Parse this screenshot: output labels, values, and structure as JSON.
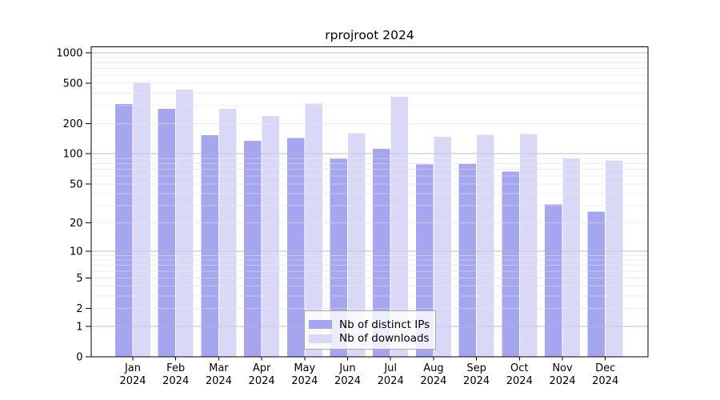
{
  "page": {
    "background": "#ffffff"
  },
  "chart_data": {
    "type": "bar",
    "title": "rprojroot 2024",
    "categories": [
      "Jan 2024",
      "Feb 2024",
      "Mar 2024",
      "Apr 2024",
      "May 2024",
      "Jun 2024",
      "Jul 2024",
      "Aug 2024",
      "Sep 2024",
      "Oct 2024",
      "Nov 2024",
      "Dec 2024"
    ],
    "series": [
      {
        "name": "Nb of distinct IPs",
        "color": "#a6a6f0",
        "values": [
          312,
          280,
          153,
          135,
          143,
          89,
          112,
          78,
          79,
          66,
          31,
          26
        ]
      },
      {
        "name": "Nb of downloads",
        "color": "#d9d9f7",
        "values": [
          510,
          433,
          279,
          237,
          314,
          160,
          369,
          148,
          154,
          157,
          90,
          86
        ]
      }
    ],
    "y_scale": "log10(value+1)",
    "y_ticks": [
      0,
      1,
      2,
      5,
      10,
      20,
      50,
      100,
      200,
      500,
      1000
    ],
    "ylim": [
      0,
      1150
    ],
    "xlabel": "",
    "ylabel": "",
    "grid": true,
    "legend_position": "bottom-center",
    "colors": {
      "grid_minor": "#ececec",
      "grid_major": "#bdbdbd",
      "axis": "#000000",
      "text": "#000000"
    }
  }
}
